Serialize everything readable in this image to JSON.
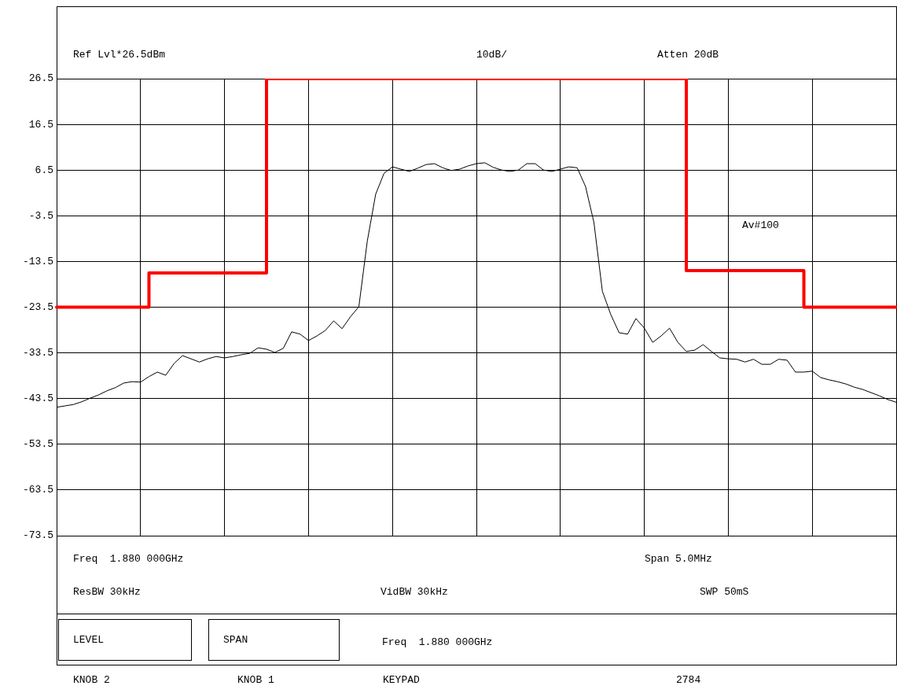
{
  "chart_data": {
    "type": "line",
    "categories": [
      null,
      null,
      null,
      null,
      null,
      null,
      null,
      null,
      null,
      null,
      null,
      null,
      null,
      null,
      null,
      null,
      null,
      null,
      null,
      null,
      null,
      null,
      null,
      null,
      null,
      null,
      null,
      null,
      null,
      null,
      null,
      null,
      null,
      null,
      null,
      null,
      null,
      null,
      null,
      null,
      null,
      null,
      null,
      null,
      null,
      null,
      null,
      null,
      null,
      null,
      null,
      null,
      null,
      null,
      null,
      null,
      null,
      null,
      null,
      null,
      null,
      null,
      null,
      null,
      null,
      null,
      null,
      null,
      null,
      null,
      null,
      null,
      null,
      null,
      null,
      null,
      null,
      null,
      null,
      null,
      null,
      null,
      null,
      null,
      null,
      null,
      null,
      null,
      null,
      null,
      null,
      null,
      null,
      null,
      null,
      null,
      null,
      null,
      null,
      null,
      null
    ],
    "series": [
      {
        "type": "line",
        "color": "#000000",
        "values": [
          -45.4,
          -45.1,
          -44.8,
          -44.2,
          -43.4,
          -42.7,
          -41.8,
          -41.1,
          -40.1,
          -39.8,
          -39.9,
          -38.7,
          -37.7,
          -38.4,
          -35.8,
          -34.1,
          -34.8,
          -35.5,
          -34.8,
          -34.3,
          -34.6,
          -34.3,
          -33.9,
          -33.6,
          -32.4,
          -32.7,
          -33.4,
          -32.5,
          -28.9,
          -29.4,
          -30.8,
          -29.8,
          -28.6,
          -26.5,
          -28.2,
          -25.6,
          -23.4,
          -9.1,
          1.2,
          5.8,
          7.2,
          6.7,
          6.2,
          6.9,
          7.7,
          7.9,
          7.0,
          6.4,
          6.7,
          7.4,
          7.9,
          8.1,
          7.1,
          6.5,
          6.2,
          6.5,
          7.9,
          7.9,
          6.5,
          6.2,
          6.7,
          7.2,
          7.0,
          2.9,
          -5.0,
          -20.0,
          -25.1,
          -29.1,
          -29.4,
          -26.0,
          -28.1,
          -31.2,
          -29.8,
          -28.1,
          -31.2,
          -33.2,
          -32.9,
          -31.7,
          -33.2,
          -34.6,
          -34.8,
          -34.9,
          -35.5,
          -34.9,
          -36.0,
          -36.0,
          -34.9,
          -35.1,
          -37.7,
          -37.7,
          -37.5,
          -38.9,
          -39.4,
          -39.8,
          -40.3,
          -41.0,
          -41.5,
          -42.2,
          -42.9,
          -43.7,
          -44.3
        ]
      },
      {
        "type": "step",
        "color": "#ff0000",
        "values": [
          -23.5,
          -23.5,
          -23.5,
          -23.5,
          -23.5,
          -23.5,
          -23.5,
          -23.5,
          -23.5,
          -23.5,
          -23.5,
          -16,
          -16,
          -16,
          -16,
          -16,
          -16,
          -16,
          -16,
          -16,
          -16,
          -16,
          -16,
          -16,
          -16,
          26.5,
          26.5,
          26.5,
          26.5,
          26.5,
          26.5,
          26.5,
          26.5,
          26.5,
          26.5,
          26.5,
          26.5,
          26.5,
          26.5,
          26.5,
          26.5,
          26.5,
          26.5,
          26.5,
          26.5,
          26.5,
          26.5,
          26.5,
          26.5,
          26.5,
          26.5,
          26.5,
          26.5,
          26.5,
          26.5,
          26.5,
          26.5,
          26.5,
          26.5,
          26.5,
          26.5,
          26.5,
          26.5,
          26.5,
          26.5,
          26.5,
          26.5,
          26.5,
          26.5,
          26.5,
          26.5,
          26.5,
          26.5,
          26.5,
          26.5,
          -15.5,
          -15.5,
          -15.5,
          -15.5,
          -15.5,
          -15.5,
          -15.5,
          -15.5,
          -15.5,
          -15.5,
          -15.5,
          -15.5,
          -15.5,
          -15.5,
          -23.5,
          -23.5,
          -23.5,
          -23.5,
          -23.5,
          -23.5,
          -23.5,
          -23.5,
          -23.5,
          -23.5,
          -23.5,
          -23.5
        ]
      }
    ],
    "ylim": [
      -73.5,
      26.5
    ],
    "yticks": [
      26.5,
      16.5,
      6.5,
      -3.5,
      -13.5,
      -23.5,
      -33.5,
      -43.5,
      -53.5,
      -63.5,
      -73.5
    ],
    "grid": true,
    "tick_labels": "y",
    "marker": "none",
    "annotations": [
      "Ref Lvl*26.5dBm",
      "10dB/",
      "Atten 20dB",
      "Av#100",
      "Freq  1.880 000GHz",
      "Span 5.0MHz",
      "ResBW 30kHz",
      "VidBW 30kHz",
      "SWP 50mS",
      "LEVEL",
      "SPAN",
      "Freq  1.880 000GHz",
      "KNOB 2",
      "KNOB 1",
      "KEYPAD",
      "2784"
    ]
  }
}
